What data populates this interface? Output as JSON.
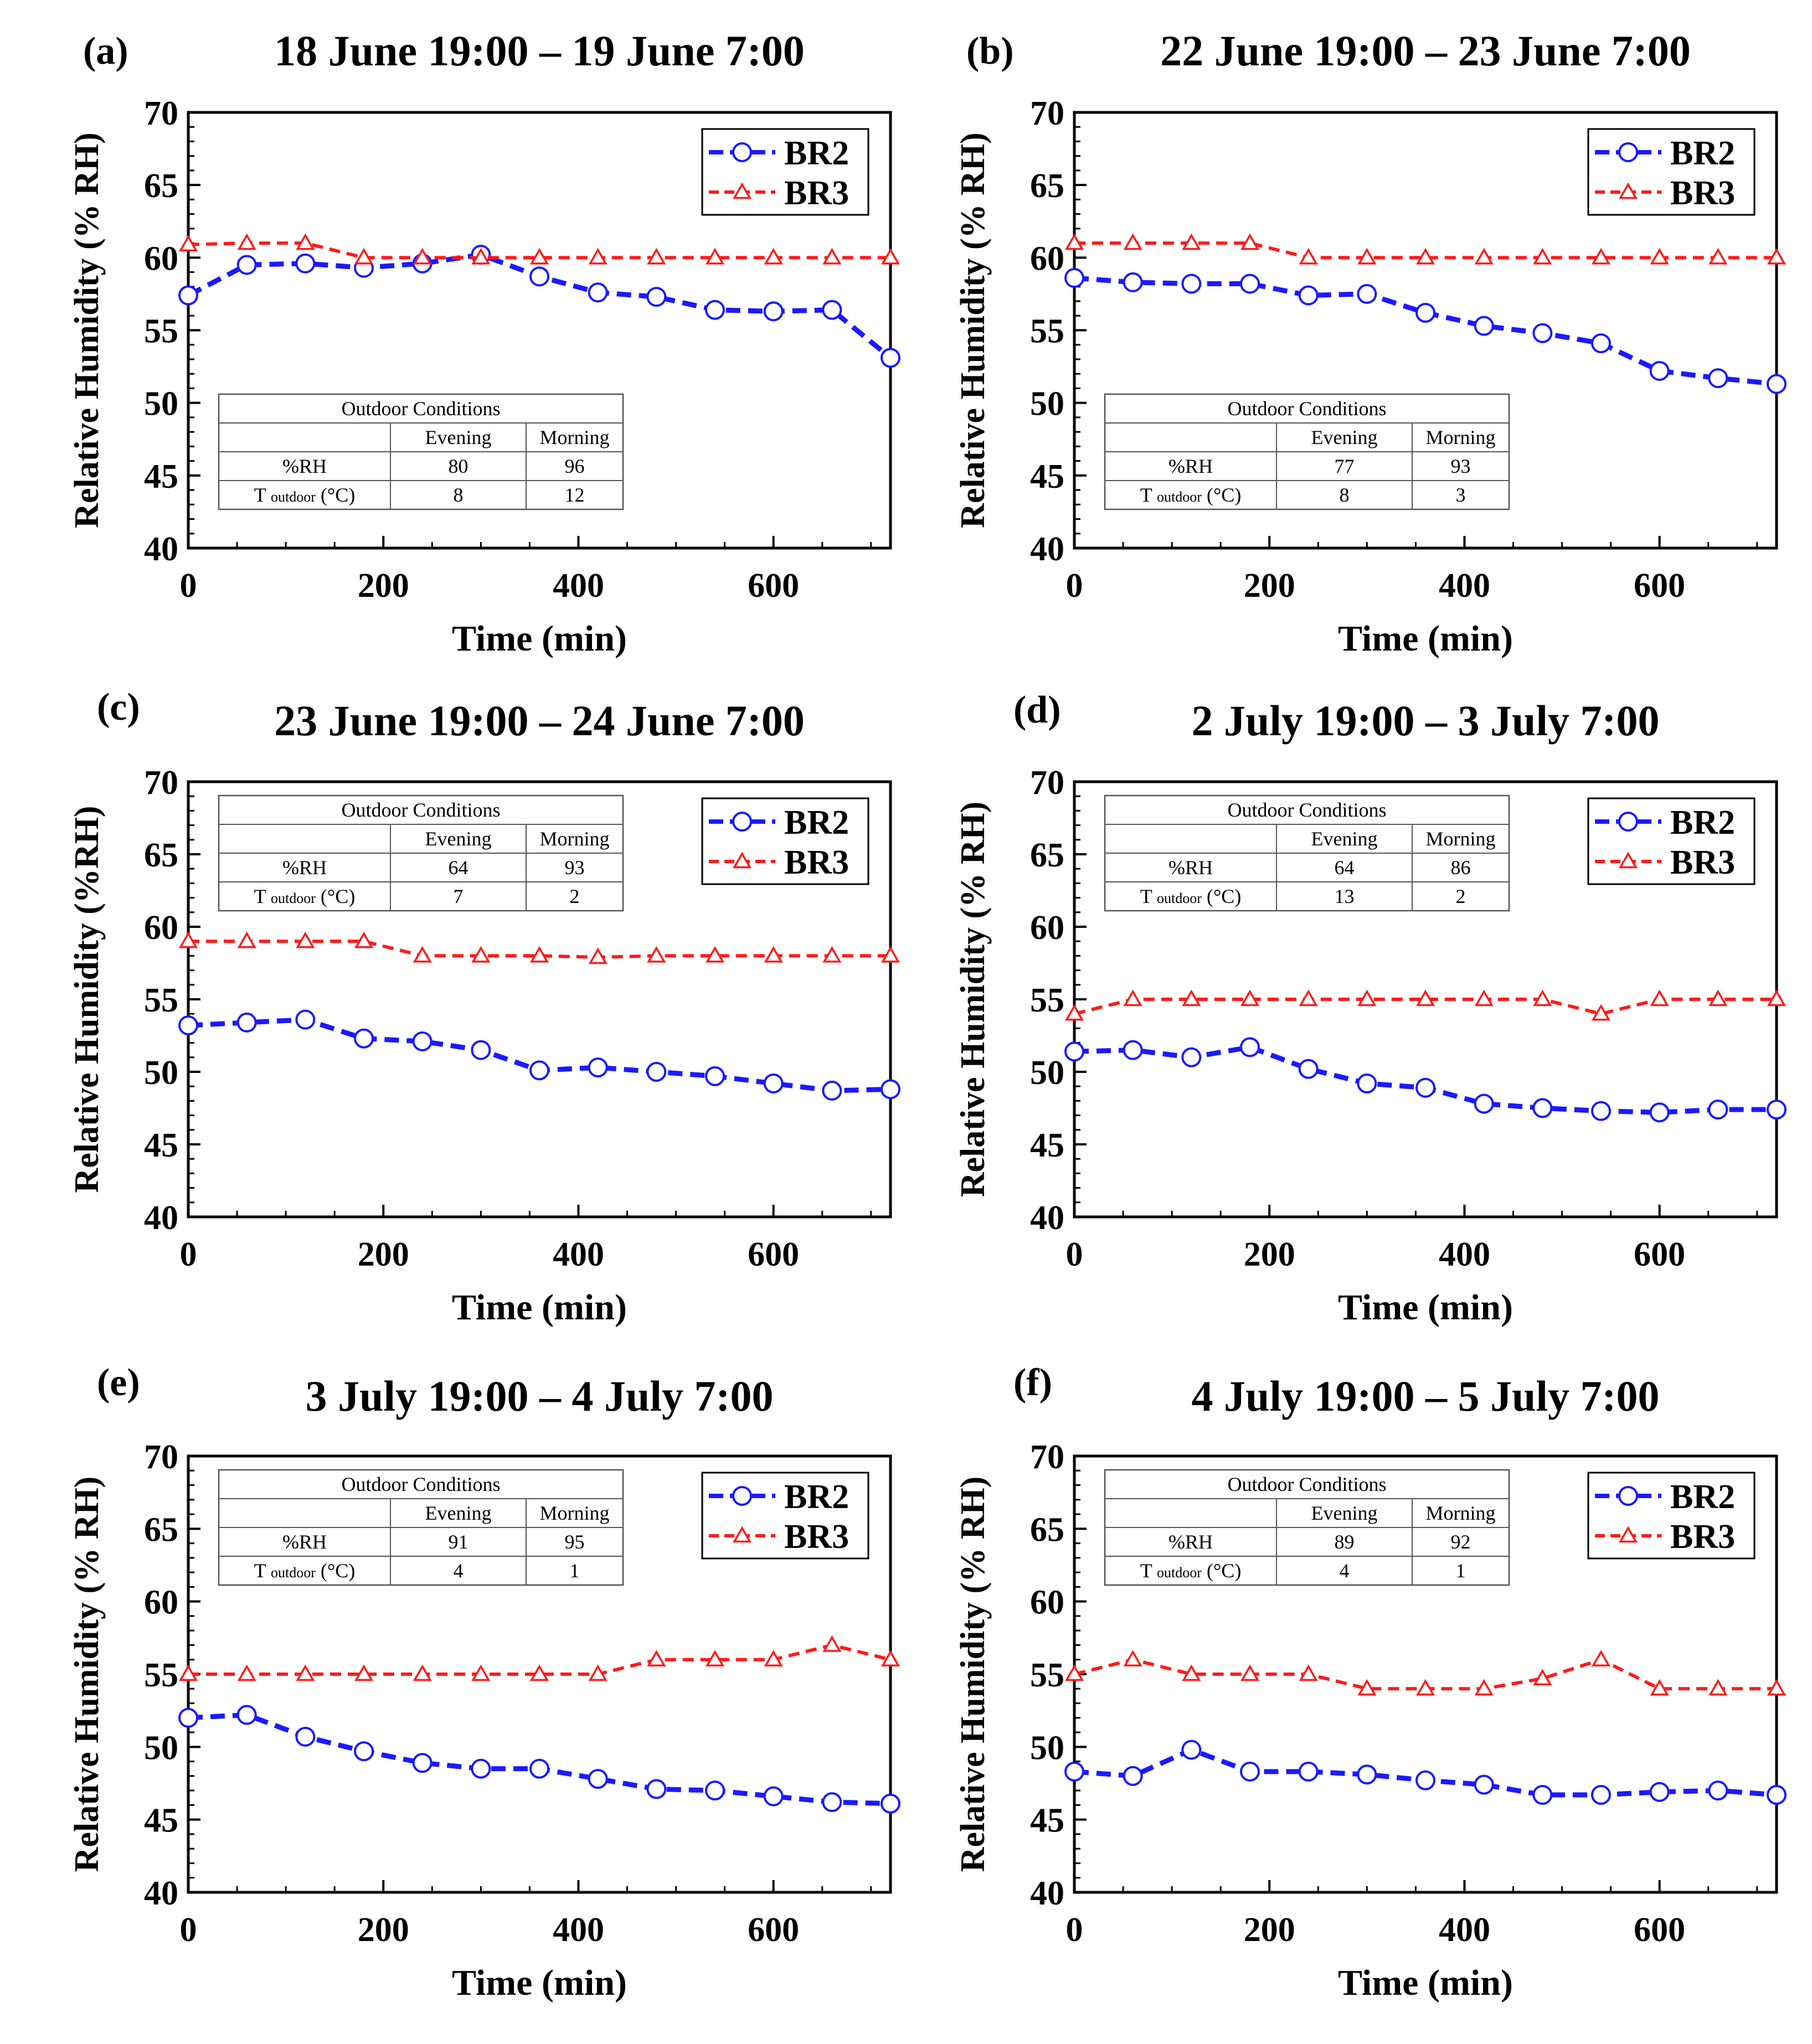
{
  "chart_data": [
    {
      "type": "line",
      "panel_label": "(a)",
      "title": "18 June 19:00 – 19 June 7:00",
      "xlabel": "Time (min)",
      "ylabel": "Relative Humidity (% RH)",
      "xlim": [
        0,
        720
      ],
      "ylim": [
        40,
        70
      ],
      "xticks": [
        "0",
        "200",
        "400",
        "600"
      ],
      "yticks": [
        "40",
        "45",
        "50",
        "55",
        "60",
        "65",
        "70"
      ],
      "x": [
        0,
        60,
        120,
        180,
        240,
        300,
        360,
        420,
        480,
        540,
        600,
        660,
        720
      ],
      "series": [
        {
          "name": "BR2",
          "values": [
            57.4,
            59.5,
            59.6,
            59.3,
            59.6,
            60.2,
            58.7,
            57.6,
            57.3,
            56.4,
            56.3,
            56.4,
            53.1
          ]
        },
        {
          "name": "BR3",
          "values": [
            60.9,
            61.0,
            61.0,
            60.0,
            60.0,
            60.0,
            60.0,
            60.0,
            60.0,
            60.0,
            60.0,
            60.0,
            60.0
          ]
        }
      ],
      "legend_position": "top-right",
      "outdoor_table": {
        "title": "Outdoor Conditions",
        "col_evening": "Evening",
        "col_morning": "Morning",
        "row_rh": "%RH",
        "row_t_main": "T",
        "row_t_sub": "outdoor",
        "row_t_unit": "(°C)",
        "rh_evening": "80",
        "rh_morning": "96",
        "t_evening": "8",
        "t_morning": "12"
      },
      "table_position": "bottom-left"
    },
    {
      "type": "line",
      "panel_label": "(b)",
      "title": "22 June 19:00 – 23 June 7:00",
      "xlabel": "Time (min)",
      "ylabel": "Relative Humidity (% RH)",
      "xlim": [
        0,
        720
      ],
      "ylim": [
        40,
        70
      ],
      "xticks": [
        "0",
        "200",
        "400",
        "600"
      ],
      "yticks": [
        "40",
        "45",
        "50",
        "55",
        "60",
        "65",
        "70"
      ],
      "x": [
        0,
        60,
        120,
        180,
        240,
        300,
        360,
        420,
        480,
        540,
        600,
        660,
        720
      ],
      "series": [
        {
          "name": "BR2",
          "values": [
            58.6,
            58.3,
            58.2,
            58.2,
            57.4,
            57.5,
            56.2,
            55.3,
            54.8,
            54.1,
            52.2,
            51.7,
            51.3
          ]
        },
        {
          "name": "BR3",
          "values": [
            61.0,
            61.0,
            61.0,
            61.0,
            60.0,
            60.0,
            60.0,
            60.0,
            60.0,
            60.0,
            60.0,
            60.0,
            60.0
          ]
        }
      ],
      "legend_position": "top-right",
      "outdoor_table": {
        "title": "Outdoor Conditions",
        "col_evening": "Evening",
        "col_morning": "Morning",
        "row_rh": "%RH",
        "row_t_main": "T",
        "row_t_sub": "outdoor",
        "row_t_unit": "(°C)",
        "rh_evening": "77",
        "rh_morning": "93",
        "t_evening": "8",
        "t_morning": "3"
      },
      "table_position": "bottom-left"
    },
    {
      "type": "line",
      "panel_label": "(c)",
      "title": "23 June 19:00 – 24 June 7:00",
      "xlabel": "Time (min)",
      "ylabel": "Relative Humidity (%RH)",
      "xlim": [
        0,
        720
      ],
      "ylim": [
        40,
        70
      ],
      "xticks": [
        "0",
        "200",
        "400",
        "600"
      ],
      "yticks": [
        "40",
        "45",
        "50",
        "55",
        "60",
        "65",
        "70"
      ],
      "x": [
        0,
        60,
        120,
        180,
        240,
        300,
        360,
        420,
        480,
        540,
        600,
        660,
        720
      ],
      "series": [
        {
          "name": "BR2",
          "values": [
            53.2,
            53.4,
            53.6,
            52.3,
            52.1,
            51.5,
            50.1,
            50.3,
            50.0,
            49.7,
            49.2,
            48.7,
            48.8
          ]
        },
        {
          "name": "BR3",
          "values": [
            59.0,
            59.0,
            59.0,
            59.0,
            58.0,
            58.0,
            58.0,
            57.9,
            58.0,
            58.0,
            58.0,
            58.0,
            58.0
          ]
        }
      ],
      "legend_position": "top-right",
      "outdoor_table": {
        "title": "Outdoor Conditions",
        "col_evening": "Evening",
        "col_morning": "Morning",
        "row_rh": "%RH",
        "row_t_main": "T",
        "row_t_sub": "outdoor",
        "row_t_unit": "(°C)",
        "rh_evening": "64",
        "rh_morning": "93",
        "t_evening": "7",
        "t_morning": "2"
      },
      "table_position": "top-left"
    },
    {
      "type": "line",
      "panel_label": "(d)",
      "title": "2 July 19:00 – 3 July 7:00",
      "xlabel": "Time (min)",
      "ylabel": "Relative Humidity (% RH)",
      "xlim": [
        0,
        720
      ],
      "ylim": [
        40,
        70
      ],
      "xticks": [
        "0",
        "200",
        "400",
        "600"
      ],
      "yticks": [
        "40",
        "45",
        "50",
        "55",
        "60",
        "65",
        "70"
      ],
      "x": [
        0,
        60,
        120,
        180,
        240,
        300,
        360,
        420,
        480,
        540,
        600,
        660,
        720
      ],
      "series": [
        {
          "name": "BR2",
          "values": [
            51.4,
            51.5,
            51.0,
            51.7,
            50.2,
            49.2,
            48.9,
            47.8,
            47.5,
            47.3,
            47.2,
            47.4,
            47.4
          ]
        },
        {
          "name": "BR3",
          "values": [
            54.0,
            55.0,
            55.0,
            55.0,
            55.0,
            55.0,
            55.0,
            55.0,
            55.0,
            54.0,
            55.0,
            55.0,
            55.0
          ]
        }
      ],
      "legend_position": "top-right",
      "outdoor_table": {
        "title": "Outdoor Conditions",
        "col_evening": "Evening",
        "col_morning": "Morning",
        "row_rh": "%RH",
        "row_t_main": "T",
        "row_t_sub": "outdoor",
        "row_t_unit": "(°C)",
        "rh_evening": "64",
        "rh_morning": "86",
        "t_evening": "13",
        "t_morning": "2"
      },
      "table_position": "top-left"
    },
    {
      "type": "line",
      "panel_label": "(e)",
      "title": "3 July 19:00 – 4 July 7:00",
      "xlabel": "Time (min)",
      "ylabel": "Relative Humidity (% RH)",
      "xlim": [
        0,
        720
      ],
      "ylim": [
        40,
        70
      ],
      "xticks": [
        "0",
        "200",
        "400",
        "600"
      ],
      "yticks": [
        "40",
        "45",
        "50",
        "55",
        "60",
        "65",
        "70"
      ],
      "x": [
        0,
        60,
        120,
        180,
        240,
        300,
        360,
        420,
        480,
        540,
        600,
        660,
        720
      ],
      "series": [
        {
          "name": "BR2",
          "values": [
            52.0,
            52.2,
            50.7,
            49.7,
            48.9,
            48.5,
            48.5,
            47.8,
            47.1,
            47.0,
            46.6,
            46.2,
            46.1
          ]
        },
        {
          "name": "BR3",
          "values": [
            55.0,
            55.0,
            55.0,
            55.0,
            55.0,
            55.0,
            55.0,
            55.0,
            56.0,
            56.0,
            56.0,
            57.0,
            56.0
          ]
        }
      ],
      "legend_position": "top-right",
      "outdoor_table": {
        "title": "Outdoor Conditions",
        "col_evening": "Evening",
        "col_morning": "Morning",
        "row_rh": "%RH",
        "row_t_main": "T",
        "row_t_sub": "outdoor",
        "row_t_unit": "(°C)",
        "rh_evening": "91",
        "rh_morning": "95",
        "t_evening": "4",
        "t_morning": "1"
      },
      "table_position": "top-left"
    },
    {
      "type": "line",
      "panel_label": "(f)",
      "title": "4 July 19:00 – 5 July 7:00",
      "xlabel": "Time (min)",
      "ylabel": "Relative Humidity (% RH)",
      "xlim": [
        0,
        720
      ],
      "ylim": [
        40,
        70
      ],
      "xticks": [
        "0",
        "200",
        "400",
        "600"
      ],
      "yticks": [
        "40",
        "45",
        "50",
        "55",
        "60",
        "65",
        "70"
      ],
      "x": [
        0,
        60,
        120,
        180,
        240,
        300,
        360,
        420,
        480,
        540,
        600,
        660,
        720
      ],
      "series": [
        {
          "name": "BR2",
          "values": [
            48.3,
            48.0,
            49.8,
            48.3,
            48.3,
            48.1,
            47.7,
            47.4,
            46.7,
            46.7,
            46.9,
            47.0,
            46.7
          ]
        },
        {
          "name": "BR3",
          "values": [
            55.0,
            56.0,
            55.0,
            55.0,
            55.0,
            54.0,
            54.0,
            54.0,
            54.7,
            56.0,
            54.0,
            54.0,
            54.0
          ]
        }
      ],
      "legend_position": "top-right",
      "outdoor_table": {
        "title": "Outdoor Conditions",
        "col_evening": "Evening",
        "col_morning": "Morning",
        "row_rh": "%RH",
        "row_t_main": "T",
        "row_t_sub": "outdoor",
        "row_t_unit": "(°C)",
        "rh_evening": "89",
        "rh_morning": "92",
        "t_evening": "4",
        "t_morning": "1"
      },
      "table_position": "top-left"
    }
  ],
  "colors": {
    "BR2": "#1a1aff",
    "BR3": "#ff1a1a",
    "axis": "#000000"
  }
}
